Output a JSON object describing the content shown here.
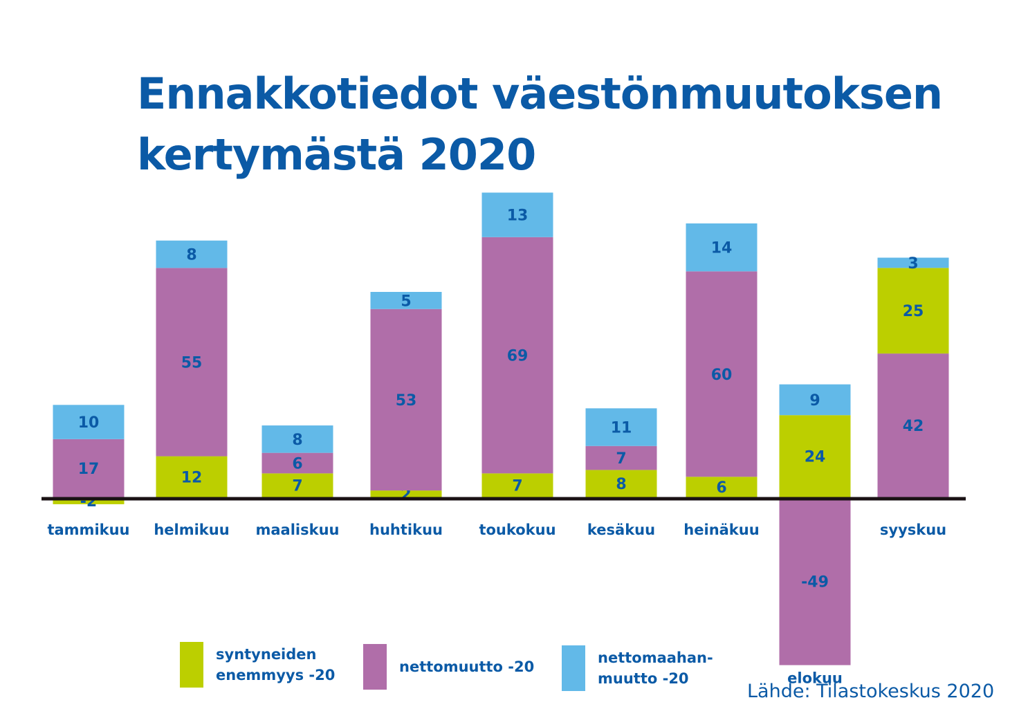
{
  "title_lines": [
    "Ennakkotiedot väestönmuutoksen",
    "kertymästä 2020"
  ],
  "source": "Lähde: Tilastokeskus 2020",
  "colors": {
    "title": "#0b5aa6",
    "label": "#0b5aa6",
    "axis": "#1a1214",
    "syntyneiden": "#bccf00",
    "nettomuutto": "#b06ea9",
    "nettomaahanmuutto": "#62b9e8"
  },
  "legend": [
    {
      "key": "syntyneiden",
      "lines": [
        "syntyneiden",
        "enemmyys -20"
      ]
    },
    {
      "key": "nettomuutto",
      "lines": [
        "nettomuutto -20"
      ]
    },
    {
      "key": "nettomaahanmuutto",
      "lines": [
        "nettomaahan-",
        "muutto -20"
      ]
    }
  ],
  "chart_data": {
    "type": "bar",
    "stacked": true,
    "categories": [
      "tammikuu",
      "helmikuu",
      "maaliskuu",
      "huhtikuu",
      "toukokuu",
      "kesäkuu",
      "heinäkuu",
      "elokuu",
      "syyskuu"
    ],
    "series": [
      {
        "name": "syntyneiden enemmyys -20",
        "key": "syntyneiden",
        "values": [
          -2,
          12,
          7,
          2,
          7,
          8,
          6,
          24,
          25
        ]
      },
      {
        "name": "nettomuutto -20",
        "key": "nettomuutto",
        "values": [
          17,
          55,
          6,
          53,
          69,
          7,
          60,
          -49,
          42
        ]
      },
      {
        "name": "nettomaahanmuutto -20",
        "key": "nettomaahanmuutto",
        "values": [
          10,
          8,
          8,
          5,
          13,
          11,
          14,
          9,
          3
        ]
      }
    ],
    "stack_order": [
      [
        "syntyneiden",
        "nettomuutto",
        "nettomaahanmuutto"
      ],
      [
        "syntyneiden",
        "nettomuutto",
        "nettomaahanmuutto"
      ],
      [
        "syntyneiden",
        "nettomuutto",
        "nettomaahanmuutto"
      ],
      [
        "syntyneiden",
        "nettomuutto",
        "nettomaahanmuutto"
      ],
      [
        "syntyneiden",
        "nettomuutto",
        "nettomaahanmuutto"
      ],
      [
        "syntyneiden",
        "nettomuutto",
        "nettomaahanmuutto"
      ],
      [
        "syntyneiden",
        "nettomuutto",
        "nettomaahanmuutto"
      ],
      [
        "syntyneiden",
        "nettomuutto",
        "nettomaahanmuutto"
      ],
      [
        "nettomuutto",
        "syntyneiden",
        "nettomaahanmuutto"
      ]
    ],
    "ylim": [
      -49,
      90
    ],
    "grid": false,
    "legend_position": "bottom"
  }
}
